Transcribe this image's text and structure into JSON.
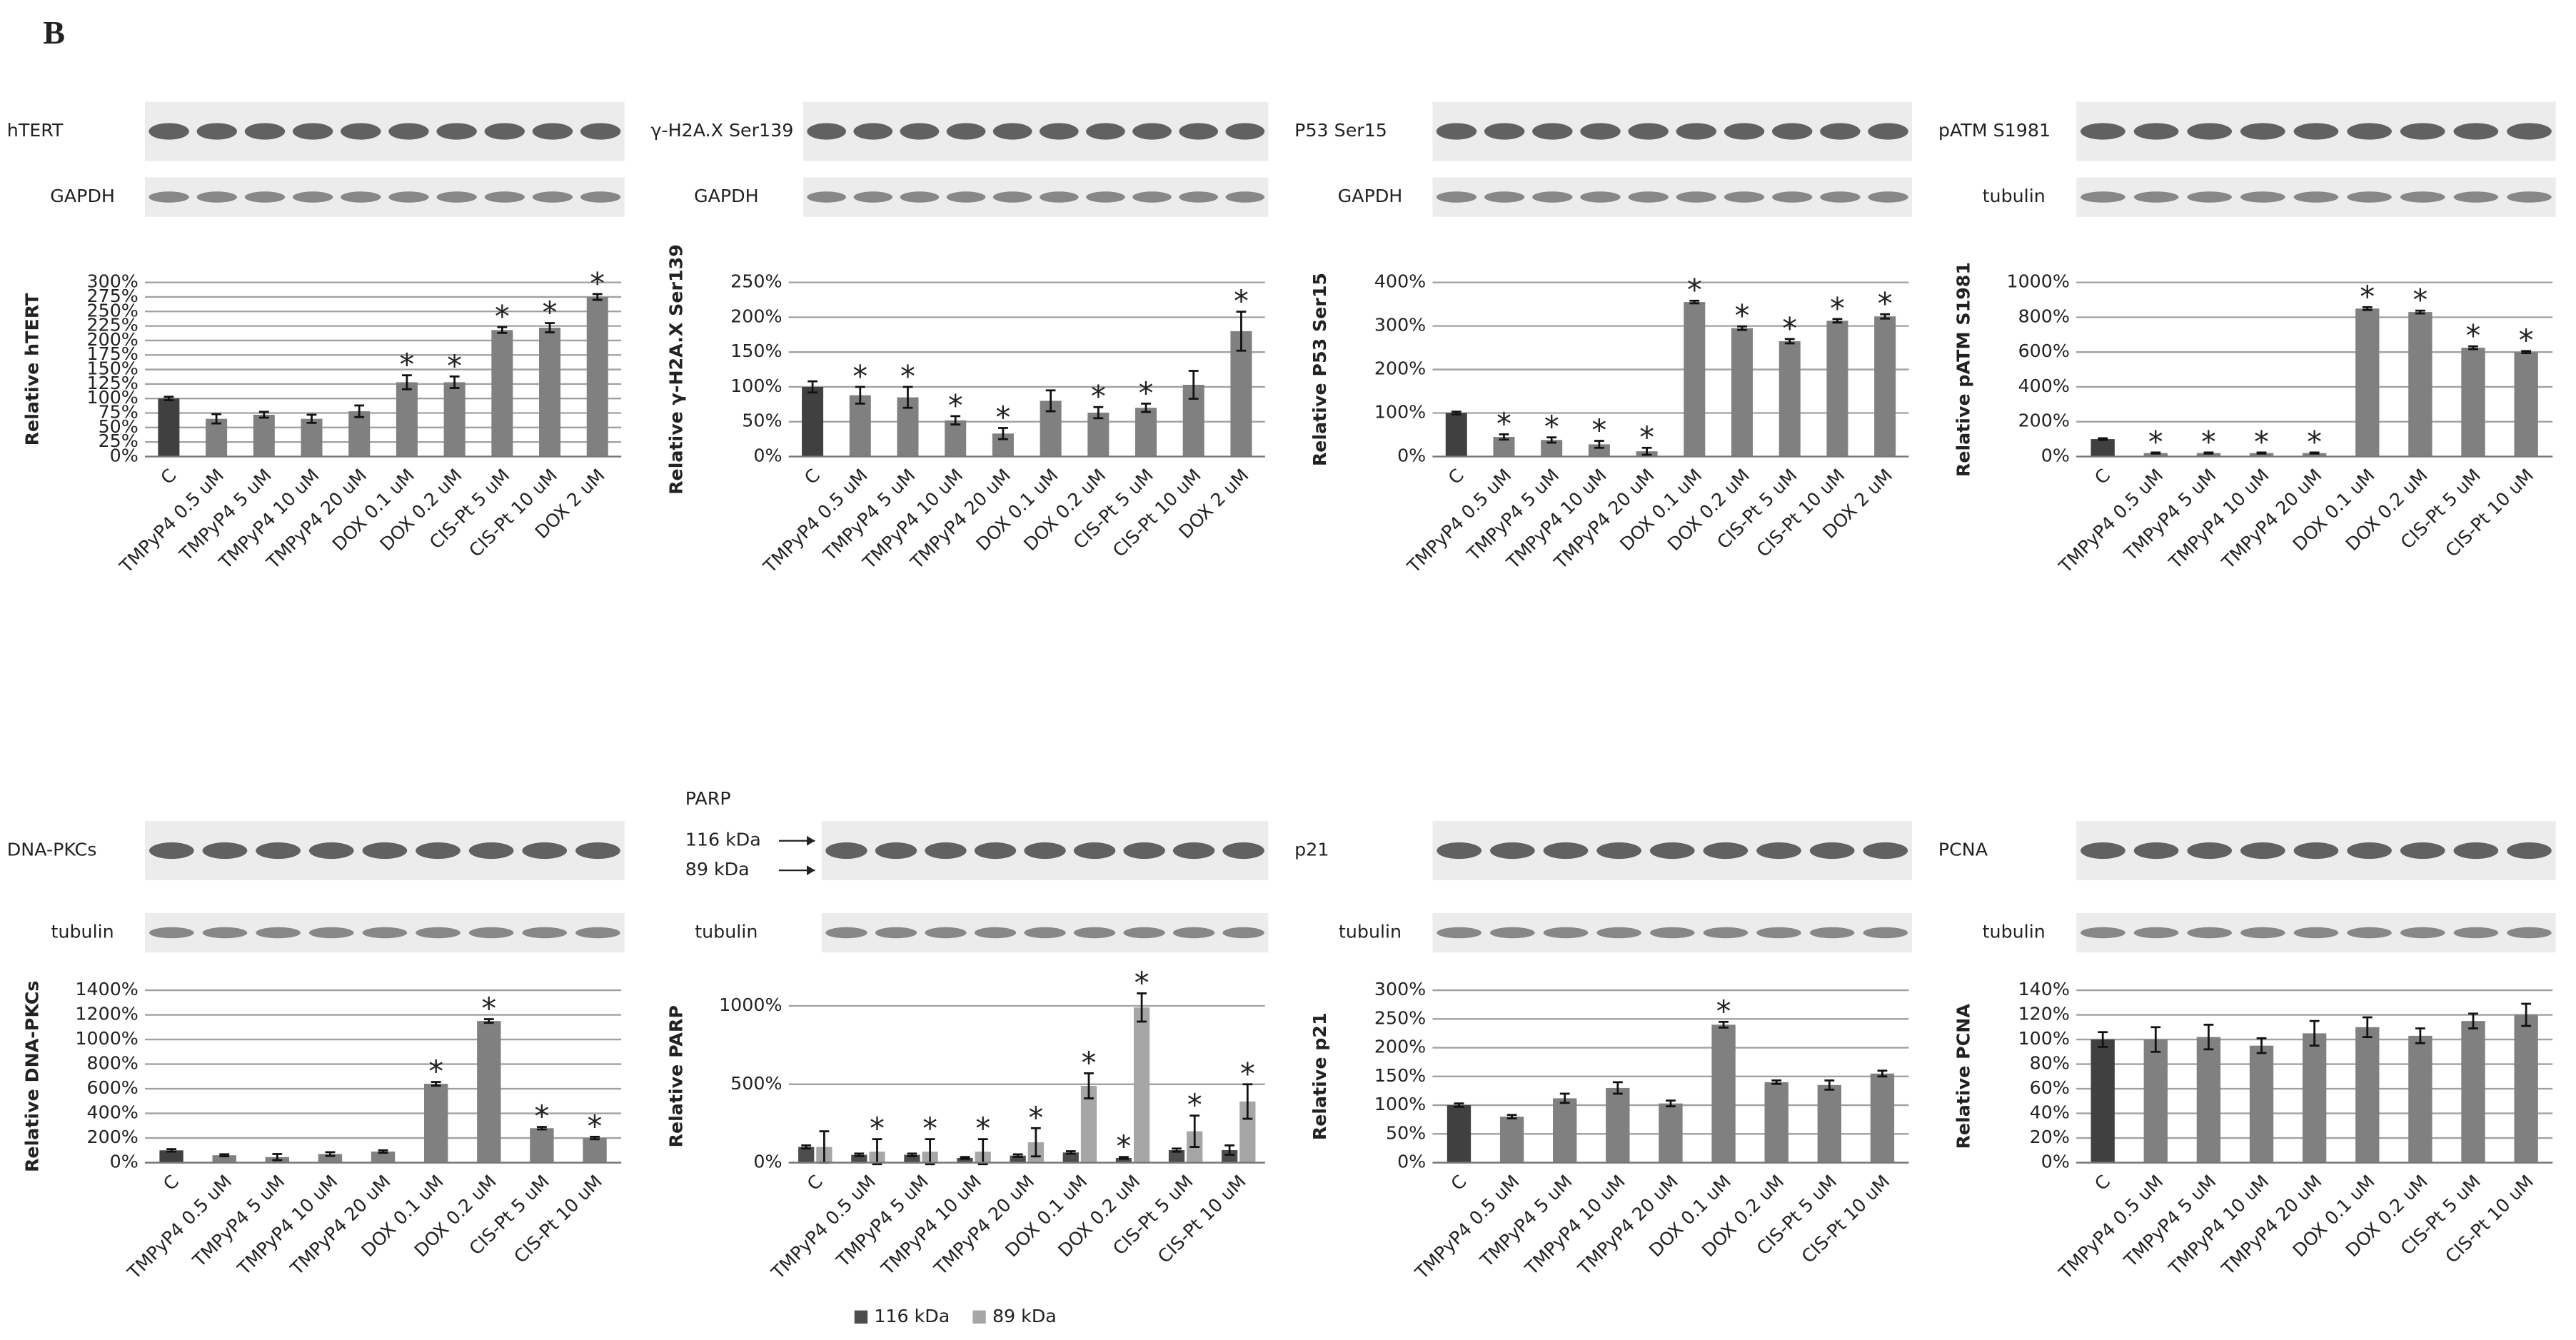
{
  "figure_label": "B",
  "chart_data": [
    {
      "type": "bar",
      "protein": "hTERT",
      "loading_control": "GAPDH",
      "ylabel": "Relative hTERT",
      "categories": [
        "C",
        "TMPyP4 0.5 uM",
        "TMPyP4 5 uM",
        "TMPyP4 10 uM",
        "TMPyP4 20 uM",
        "DOX 0.1 uM",
        "DOX 0.2 uM",
        "CIS-Pt 5 uM",
        "CIS-Pt 10 uM",
        "DOX 2 uM"
      ],
      "values": [
        100,
        65,
        72,
        65,
        78,
        128,
        128,
        218,
        222,
        275
      ],
      "errors": [
        3,
        8,
        5,
        7,
        10,
        12,
        10,
        5,
        8,
        5
      ],
      "stars": [
        null,
        null,
        null,
        null,
        null,
        "*",
        "*",
        "*",
        "*",
        "*"
      ],
      "color": "#808080",
      "control_color": "#404040",
      "ylim": [
        0,
        300
      ],
      "yticks": [
        {
          "value": 0,
          "label": "0%"
        },
        {
          "value": 25,
          "label": "25%"
        },
        {
          "value": 50,
          "label": "50%"
        },
        {
          "value": 75,
          "label": "75%"
        },
        {
          "value": 100,
          "label": "100%"
        },
        {
          "value": 125,
          "label": "125%"
        },
        {
          "value": 150,
          "label": "150%"
        },
        {
          "value": 175,
          "label": "175%"
        },
        {
          "value": 200,
          "label": "200%"
        },
        {
          "value": 225,
          "label": "225%"
        },
        {
          "value": 250,
          "label": "250%"
        },
        {
          "value": 275,
          "label": "275%"
        },
        {
          "value": 300,
          "label": "300%"
        }
      ],
      "grid": true
    },
    {
      "type": "bar",
      "protein": "γ-H2A.X Ser139",
      "loading_control": "GAPDH",
      "ylabel": "Relative γ-H2A.X  Ser139",
      "categories": [
        "C",
        "TMPyP4 0.5 uM",
        "TMPyP4 5 uM",
        "TMPyP4 10 uM",
        "TMPyP4 20 uM",
        "DOX 0.1 uM",
        "DOX 0.2 uM",
        "CIS-Pt 5 uM",
        "CIS-Pt 10 uM",
        "DOX 2 uM"
      ],
      "values": [
        100,
        88,
        85,
        52,
        33,
        80,
        63,
        70,
        103,
        180
      ],
      "errors": [
        8,
        12,
        15,
        6,
        8,
        15,
        8,
        6,
        20,
        28
      ],
      "stars": [
        null,
        "*",
        "*",
        "*",
        "*",
        null,
        "*",
        "*",
        null,
        "*"
      ],
      "color": "#808080",
      "control_color": "#404040",
      "ylim": [
        0,
        250
      ],
      "yticks": [
        {
          "value": 0,
          "label": "0%"
        },
        {
          "value": 50,
          "label": "50%"
        },
        {
          "value": 100,
          "label": "100%"
        },
        {
          "value": 150,
          "label": "150%"
        },
        {
          "value": 200,
          "label": "200%"
        },
        {
          "value": 250,
          "label": "250%"
        }
      ],
      "grid": true
    },
    {
      "type": "bar",
      "protein": "P53 Ser15",
      "loading_control": "GAPDH",
      "ylabel": "Relative P53 Ser15",
      "categories": [
        "C",
        "TMPyP4 0.5 uM",
        "TMPyP4 5 uM",
        "TMPyP4 10 uM",
        "TMPyP4 20 uM",
        "DOX 0.1 uM",
        "DOX 0.2 uM",
        "CIS-Pt 5 uM",
        "CIS-Pt 10 uM",
        "DOX 2 uM"
      ],
      "values": [
        100,
        45,
        38,
        28,
        12,
        355,
        295,
        265,
        312,
        322
      ],
      "errors": [
        3,
        6,
        6,
        8,
        8,
        3,
        4,
        5,
        4,
        5
      ],
      "stars": [
        null,
        "*",
        "*",
        "*",
        "*",
        "*",
        "*",
        "*",
        "*",
        "*"
      ],
      "color": "#808080",
      "control_color": "#404040",
      "ylim": [
        0,
        400
      ],
      "yticks": [
        {
          "value": 0,
          "label": "0%"
        },
        {
          "value": 100,
          "label": "100%"
        },
        {
          "value": 200,
          "label": "200%"
        },
        {
          "value": 300,
          "label": "300%"
        },
        {
          "value": 400,
          "label": "400%"
        }
      ],
      "grid": true
    },
    {
      "type": "bar",
      "protein": "pATM S1981",
      "loading_control": "tubulin",
      "ylabel": "Relative pATM S1981",
      "categories": [
        "C",
        "TMPyP4 0.5 uM",
        "TMPyP4 5 uM",
        "TMPyP4 10 uM",
        "TMPyP4 20 uM",
        "DOX 0.1 uM",
        "DOX 0.2 uM",
        "CIS-Pt 5 uM",
        "CIS-Pt 10 uM"
      ],
      "values": [
        100,
        20,
        20,
        20,
        20,
        850,
        830,
        625,
        600
      ],
      "errors": [
        5,
        3,
        3,
        3,
        3,
        8,
        8,
        8,
        6
      ],
      "stars": [
        null,
        "*",
        "*",
        "*",
        "*",
        "*",
        "*",
        "*",
        "*"
      ],
      "color": "#808080",
      "control_color": "#404040",
      "ylim": [
        0,
        1000
      ],
      "yticks": [
        {
          "value": 0,
          "label": "0%"
        },
        {
          "value": 200,
          "label": "200%"
        },
        {
          "value": 400,
          "label": "400%"
        },
        {
          "value": 600,
          "label": "600%"
        },
        {
          "value": 800,
          "label": "800%"
        },
        {
          "value": 1000,
          "label": "1000%"
        }
      ],
      "grid": true
    },
    {
      "type": "bar",
      "protein": "DNA-PKCs",
      "loading_control": "tubulin",
      "ylabel": "Relative DNA-PKCs",
      "categories": [
        "C",
        "TMPyP4 0.5 uM",
        "TMPyP4 5 uM",
        "TMPyP4 10 uM",
        "TMPyP4 20 uM",
        "DOX 0.1 uM",
        "DOX 0.2 uM",
        "CIS-Pt 5 uM",
        "CIS-Pt 10 uM"
      ],
      "values": [
        100,
        60,
        45,
        70,
        90,
        640,
        1150,
        280,
        200
      ],
      "errors": [
        10,
        8,
        25,
        15,
        10,
        15,
        15,
        10,
        10
      ],
      "stars": [
        null,
        null,
        null,
        null,
        null,
        "*",
        "*",
        "*",
        "*"
      ],
      "color": "#808080",
      "control_color": "#404040",
      "ylim": [
        0,
        1400
      ],
      "yticks": [
        {
          "value": 0,
          "label": "0%"
        },
        {
          "value": 200,
          "label": "200%"
        },
        {
          "value": 400,
          "label": "400%"
        },
        {
          "value": 600,
          "label": "600%"
        },
        {
          "value": 800,
          "label": "800%"
        },
        {
          "value": 1000,
          "label": "1000%"
        },
        {
          "value": 1200,
          "label": "1200%"
        },
        {
          "value": 1400,
          "label": "1400%"
        }
      ],
      "grid": true
    },
    {
      "type": "grouped_bar",
      "protein": "PARP",
      "band_labels": [
        "116 kDa",
        "89 kDa"
      ],
      "loading_control": "tubulin",
      "ylabel": "Relative PARP",
      "categories": [
        "C",
        "TMPyP4 0.5 uM",
        "TMPyP4 5 uM",
        "TMPyP4 10 uM",
        "TMPyP4 20 uM",
        "DOX 0.1 uM",
        "DOX 0.2 uM",
        "CIS-Pt 5 uM",
        "CIS-Pt 10 uM"
      ],
      "series": [
        {
          "name": "116 kDa",
          "color": "#4d4d4d",
          "values": [
            100,
            50,
            50,
            30,
            45,
            65,
            30,
            80,
            80
          ],
          "errors": [
            10,
            8,
            8,
            6,
            8,
            8,
            6,
            10,
            30
          ],
          "stars": [
            null,
            null,
            null,
            null,
            null,
            null,
            "*",
            null,
            null
          ]
        },
        {
          "name": "89 kDa",
          "color": "#a6a6a6",
          "values": [
            100,
            70,
            70,
            70,
            130,
            490,
            990,
            200,
            390
          ],
          "errors": [
            100,
            80,
            80,
            80,
            90,
            80,
            90,
            100,
            110
          ],
          "stars": [
            null,
            "*",
            "*",
            "*",
            "*",
            "*",
            "*",
            "*",
            "*"
          ]
        }
      ],
      "ylim": [
        0,
        1100
      ],
      "yticks": [
        {
          "value": 0,
          "label": "0%"
        },
        {
          "value": 500,
          "label": "500%"
        },
        {
          "value": 1000,
          "label": "1000%"
        }
      ],
      "grid": true,
      "legend": "bottom"
    },
    {
      "type": "bar",
      "protein": "p21",
      "loading_control": "tubulin",
      "ylabel": "Relative p21",
      "categories": [
        "C",
        "TMPyP4 0.5 uM",
        "TMPyP4 5 uM",
        "TMPyP4 10 uM",
        "TMPyP4 20 uM",
        "DOX 0.1 uM",
        "DOX 0.2 uM",
        "CIS-Pt 5 uM",
        "CIS-Pt 10 uM"
      ],
      "values": [
        100,
        80,
        112,
        130,
        103,
        240,
        140,
        135,
        155
      ],
      "errors": [
        3,
        3,
        8,
        10,
        5,
        5,
        3,
        8,
        5
      ],
      "stars": [
        null,
        null,
        null,
        null,
        null,
        "*",
        null,
        null,
        null
      ],
      "color": "#808080",
      "control_color": "#404040",
      "ylim": [
        0,
        300
      ],
      "yticks": [
        {
          "value": 0,
          "label": "0%"
        },
        {
          "value": 50,
          "label": "50%"
        },
        {
          "value": 100,
          "label": "100%"
        },
        {
          "value": 150,
          "label": "150%"
        },
        {
          "value": 200,
          "label": "200%"
        },
        {
          "value": 250,
          "label": "250%"
        },
        {
          "value": 300,
          "label": "300%"
        }
      ],
      "grid": true
    },
    {
      "type": "bar",
      "protein": "PCNA",
      "loading_control": "tubulin",
      "ylabel": "Relative PCNA",
      "categories": [
        "C",
        "TMPyP4 0.5 uM",
        "TMPyP4 5 uM",
        "TMPyP4 10 uM",
        "TMPyP4 20 uM",
        "DOX 0.1 uM",
        "DOX 0.2 uM",
        "CIS-Pt 5 uM",
        "CIS-Pt 10 uM"
      ],
      "values": [
        100,
        100,
        102,
        95,
        105,
        110,
        103,
        115,
        120
      ],
      "errors": [
        6,
        10,
        10,
        6,
        10,
        8,
        6,
        6,
        9
      ],
      "color": "#808080",
      "control_color": "#404040",
      "ylim": [
        0,
        140
      ],
      "yticks": [
        {
          "value": 0,
          "label": "0%"
        },
        {
          "value": 20,
          "label": "20%"
        },
        {
          "value": 40,
          "label": "40%"
        },
        {
          "value": 60,
          "label": "60%"
        },
        {
          "value": 80,
          "label": "80%"
        },
        {
          "value": 100,
          "label": "100%"
        },
        {
          "value": 120,
          "label": "120%"
        },
        {
          "value": 140,
          "label": "140%"
        }
      ],
      "grid": true
    }
  ]
}
